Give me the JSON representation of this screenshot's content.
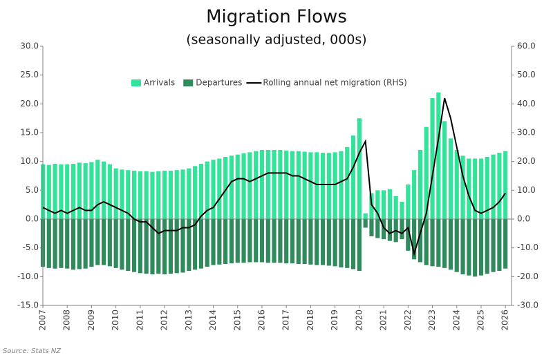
{
  "chart_data": {
    "type": "bar-line",
    "title": "Migration Flows",
    "subtitle": "(seasonally adjusted, 000s)",
    "source": "Source: Stats NZ",
    "legend": "top",
    "x": [
      2007,
      2007.25,
      2007.5,
      2007.75,
      2008,
      2008.25,
      2008.5,
      2008.75,
      2009,
      2009.25,
      2009.5,
      2009.75,
      2010,
      2010.25,
      2010.5,
      2010.75,
      2011,
      2011.25,
      2011.5,
      2011.75,
      2012,
      2012.25,
      2012.5,
      2012.75,
      2013,
      2013.25,
      2013.5,
      2013.75,
      2014,
      2014.25,
      2014.5,
      2014.75,
      2015,
      2015.25,
      2015.5,
      2015.75,
      2016,
      2016.25,
      2016.5,
      2016.75,
      2017,
      2017.25,
      2017.5,
      2017.75,
      2018,
      2018.25,
      2018.5,
      2018.75,
      2019,
      2019.25,
      2019.5,
      2019.75,
      2020,
      2020.25,
      2020.5,
      2020.75,
      2021,
      2021.25,
      2021.5,
      2021.75,
      2022,
      2022.25,
      2022.5,
      2022.75,
      2023,
      2023.25,
      2023.5,
      2023.75,
      2024,
      2024.25,
      2024.5,
      2024.75,
      2025,
      2025.25,
      2025.5,
      2025.75,
      2026
    ],
    "xlim": [
      2007,
      2026.25
    ],
    "xticks": [
      2007,
      2008,
      2009,
      2010,
      2011,
      2012,
      2013,
      2014,
      2015,
      2016,
      2017,
      2018,
      2019,
      2020,
      2021,
      2022,
      2023,
      2024,
      2025,
      2026
    ],
    "ylim": [
      -15,
      30
    ],
    "yticks": [
      {
        "value": -15,
        "label": "-15.0"
      },
      {
        "value": -10,
        "label": "-10.0"
      },
      {
        "value": -5,
        "label": "-5.0"
      },
      {
        "value": 0,
        "label": "0.0"
      },
      {
        "value": 5,
        "label": "5.0"
      },
      {
        "value": 10,
        "label": "10.0"
      },
      {
        "value": 15,
        "label": "15.0"
      },
      {
        "value": 20,
        "label": "20.0"
      },
      {
        "value": 25,
        "label": "25.0"
      },
      {
        "value": 30,
        "label": "30.0"
      }
    ],
    "y2lim": [
      -30,
      60
    ],
    "y2ticks": [
      {
        "value": -30,
        "label": "-30.0"
      },
      {
        "value": -20,
        "label": "-20.0"
      },
      {
        "value": -10,
        "label": "-10.0"
      },
      {
        "value": 0,
        "label": "0.0"
      },
      {
        "value": 10,
        "label": "10.0"
      },
      {
        "value": 20,
        "label": "20.0"
      },
      {
        "value": 30,
        "label": "30.0"
      },
      {
        "value": 40,
        "label": "40.0"
      },
      {
        "value": 50,
        "label": "50.0"
      },
      {
        "value": 60,
        "label": "60.0"
      }
    ],
    "series": [
      {
        "name": "Arrivals",
        "type": "bar",
        "color": "#33e39a",
        "values": [
          9.5,
          9.4,
          9.6,
          9.5,
          9.5,
          9.6,
          9.8,
          9.7,
          9.9,
          10.3,
          10.0,
          9.5,
          8.8,
          8.6,
          8.5,
          8.4,
          8.3,
          8.3,
          8.2,
          8.3,
          8.4,
          8.4,
          8.5,
          8.6,
          8.8,
          9.2,
          9.6,
          10.0,
          10.3,
          10.5,
          10.8,
          11.0,
          11.2,
          11.4,
          11.6,
          11.8,
          12.0,
          12.0,
          12.0,
          12.0,
          11.9,
          11.8,
          11.8,
          11.7,
          11.6,
          11.6,
          11.5,
          11.5,
          11.6,
          11.8,
          12.5,
          14.5,
          17.5,
          1.0,
          4.5,
          5.0,
          5.0,
          5.2,
          4.0,
          3.0,
          6.0,
          8.5,
          12.0,
          16.0,
          21.0,
          22.0,
          17.0,
          14.0,
          12.0,
          11.0,
          10.5,
          10.5,
          10.5,
          10.8,
          11.2,
          11.5,
          11.8
        ]
      },
      {
        "name": "Departures",
        "type": "bar",
        "color": "#2f8a5c",
        "values": [
          -8.3,
          -8.5,
          -8.6,
          -8.5,
          -8.6,
          -8.8,
          -8.7,
          -8.6,
          -8.3,
          -8.0,
          -8.0,
          -8.2,
          -8.5,
          -8.8,
          -9.0,
          -9.2,
          -9.4,
          -9.5,
          -9.6,
          -9.5,
          -9.6,
          -9.5,
          -9.4,
          -9.3,
          -9.0,
          -8.8,
          -8.6,
          -8.3,
          -8.0,
          -7.9,
          -7.8,
          -7.7,
          -7.6,
          -7.6,
          -7.5,
          -7.5,
          -7.5,
          -7.6,
          -7.6,
          -7.6,
          -7.7,
          -7.7,
          -7.8,
          -7.8,
          -7.9,
          -8.0,
          -8.0,
          -8.1,
          -8.2,
          -8.4,
          -8.5,
          -8.7,
          -9.0,
          -1.5,
          -3.0,
          -3.3,
          -3.5,
          -3.8,
          -4.0,
          -3.5,
          -5.5,
          -7.0,
          -7.5,
          -8.0,
          -8.2,
          -8.3,
          -8.5,
          -8.8,
          -9.2,
          -9.6,
          -9.8,
          -10.0,
          -9.8,
          -9.5,
          -9.2,
          -9.0,
          -8.6
        ]
      },
      {
        "name": "Rolling annual net migration (RHS)",
        "type": "line",
        "axis": "y2",
        "color": "#000000",
        "values": [
          4,
          3,
          2,
          3,
          2,
          3,
          4,
          3,
          3,
          5,
          6,
          5,
          4,
          3,
          2,
          0,
          -1,
          -1,
          -3,
          -5,
          -4,
          -4,
          -4,
          -3,
          -3,
          -2,
          1,
          3,
          4,
          7,
          10,
          13,
          14,
          14,
          13,
          14,
          15,
          16,
          16,
          16,
          16,
          15,
          15,
          14,
          13,
          12,
          12,
          12,
          12,
          13,
          14,
          18,
          23,
          27,
          5,
          2,
          -3,
          -5,
          -4,
          -5,
          -3,
          -12,
          -5,
          2,
          15,
          28,
          42,
          35,
          25,
          15,
          8,
          3,
          2,
          3,
          4,
          6,
          9
        ]
      }
    ]
  }
}
